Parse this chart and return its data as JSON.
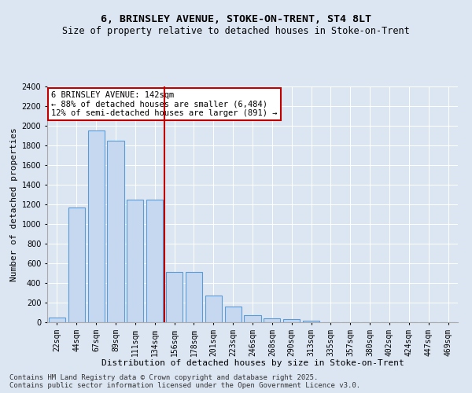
{
  "title_line1": "6, BRINSLEY AVENUE, STOKE-ON-TRENT, ST4 8LT",
  "title_line2": "Size of property relative to detached houses in Stoke-on-Trent",
  "xlabel": "Distribution of detached houses by size in Stoke-on-Trent",
  "ylabel": "Number of detached properties",
  "categories": [
    "22sqm",
    "44sqm",
    "67sqm",
    "89sqm",
    "111sqm",
    "134sqm",
    "156sqm",
    "178sqm",
    "201sqm",
    "223sqm",
    "246sqm",
    "268sqm",
    "290sqm",
    "313sqm",
    "335sqm",
    "357sqm",
    "380sqm",
    "402sqm",
    "424sqm",
    "447sqm",
    "469sqm"
  ],
  "values": [
    50,
    1170,
    1950,
    1850,
    1250,
    1250,
    510,
    510,
    270,
    160,
    70,
    40,
    30,
    15,
    4,
    3,
    2,
    1,
    1,
    0,
    0
  ],
  "bar_color": "#c5d8f0",
  "bar_edge_color": "#5b9bd5",
  "vline_index": 5,
  "vline_color": "#c00000",
  "annotation_text": "6 BRINSLEY AVENUE: 142sqm\n← 88% of detached houses are smaller (6,484)\n12% of semi-detached houses are larger (891) →",
  "annotation_box_color": "#ffffff",
  "annotation_box_edge_color": "#c00000",
  "ylim": [
    0,
    2400
  ],
  "yticks": [
    0,
    200,
    400,
    600,
    800,
    1000,
    1200,
    1400,
    1600,
    1800,
    2000,
    2200,
    2400
  ],
  "background_color": "#dce6f3",
  "plot_bg_color": "#dce6f3",
  "grid_color": "#ffffff",
  "footer_line1": "Contains HM Land Registry data © Crown copyright and database right 2025.",
  "footer_line2": "Contains public sector information licensed under the Open Government Licence v3.0.",
  "title_fontsize": 9.5,
  "subtitle_fontsize": 8.5,
  "axis_label_fontsize": 8,
  "tick_fontsize": 7,
  "annotation_fontsize": 7.5,
  "footer_fontsize": 6.5
}
